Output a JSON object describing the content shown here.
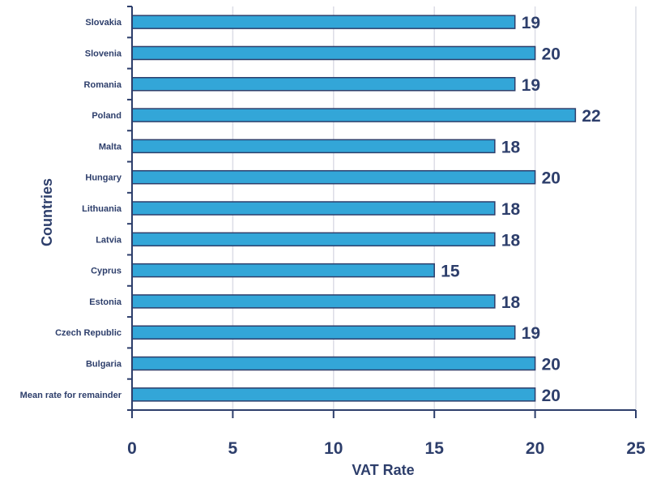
{
  "chart_data": {
    "type": "bar",
    "orientation": "horizontal",
    "title": "",
    "xlabel": "VAT Rate",
    "ylabel": "Countries",
    "xlim": [
      0,
      25
    ],
    "xticks": [
      0,
      5,
      10,
      15,
      20,
      25
    ],
    "grid": true,
    "categories": [
      "Slovakia",
      "Slovenia",
      "Romania",
      "Poland",
      "Malta",
      "Hungary",
      "Lithuania",
      "Latvia",
      "Cyprus",
      "Estonia",
      "Czech Republic",
      "Bulgaria",
      "Mean rate for remainder"
    ],
    "values": [
      19,
      20,
      19,
      22,
      18,
      20,
      18,
      18,
      15,
      18,
      19,
      20,
      20
    ],
    "colors": {
      "bar": "#33a6d8",
      "outline": "#2d3e6b",
      "grid": "#dcdde6",
      "text": "#2d3e6b"
    }
  }
}
